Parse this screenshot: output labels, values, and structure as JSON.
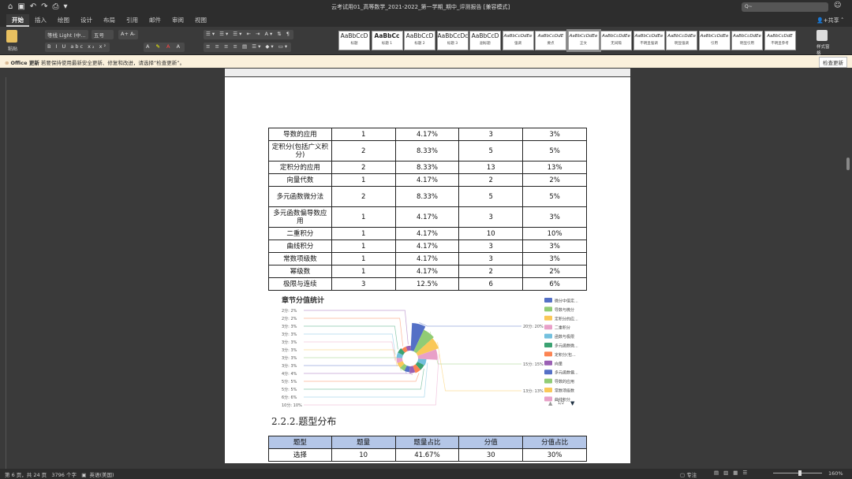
{
  "window": {
    "title": "云考试用01_高等数学_2021-2022_第一学期_期中_评测报告 [兼容模式]",
    "search_placeholder": "Q~"
  },
  "quick_access": [
    "home",
    "save",
    "undo",
    "redo",
    "print"
  ],
  "tabs": [
    "开始",
    "插入",
    "绘图",
    "设计",
    "布局",
    "引用",
    "邮件",
    "审阅",
    "视图"
  ],
  "share": "共享",
  "ribbon": {
    "paste": "粘贴",
    "font": "等线 Light (中...",
    "size": "五号",
    "styles": [
      {
        "sample": "AaBbCcD",
        "name": "标题"
      },
      {
        "sample": "AaBbCc",
        "name": "标题 1"
      },
      {
        "sample": "AaBbCcD",
        "name": "标题 2"
      },
      {
        "sample": "AaBbCcDc",
        "name": "标题 3"
      },
      {
        "sample": "AaBbCcD",
        "name": "副标题"
      },
      {
        "sample": "AaBbCcDdEe",
        "name": "强调"
      },
      {
        "sample": "AaBbCcDdE",
        "name": "要点"
      },
      {
        "sample": "AaBbCcDdEe",
        "name": "正文"
      },
      {
        "sample": "AaBbCcDdEe",
        "name": "无间隔"
      },
      {
        "sample": "AaBbCcDdEe",
        "name": "不明显强调"
      },
      {
        "sample": "AaBbCcDdEe",
        "name": "明显强调"
      },
      {
        "sample": "AaBbCcDdEe",
        "name": "引用"
      },
      {
        "sample": "AaBbCcDdEe",
        "name": "明显引用"
      },
      {
        "sample": "AaBbCcDdE",
        "name": "不明显参考"
      }
    ],
    "styles_pane": "样式窗格"
  },
  "update_bar": {
    "label": "Office 更新",
    "message": "若要保持使用最新安全更新、修复和改进，请选择“检查更新”。",
    "button": "检查更新"
  },
  "table1": [
    [
      "导数的应用",
      "1",
      "4.17%",
      "3",
      "3%"
    ],
    [
      "定积分(包括广义积分)",
      "2",
      "8.33%",
      "5",
      "5%"
    ],
    [
      "定积分的应用",
      "2",
      "8.33%",
      "13",
      "13%"
    ],
    [
      "向量代数",
      "1",
      "4.17%",
      "2",
      "2%"
    ],
    [
      "多元函数微分法",
      "2",
      "8.33%",
      "5",
      "5%"
    ],
    [
      "多元函数偏导数应用",
      "1",
      "4.17%",
      "3",
      "3%"
    ],
    [
      "二重积分",
      "1",
      "4.17%",
      "10",
      "10%"
    ],
    [
      "曲线积分",
      "1",
      "4.17%",
      "3",
      "3%"
    ],
    [
      "常数项级数",
      "1",
      "4.17%",
      "3",
      "3%"
    ],
    [
      "幂级数",
      "1",
      "4.17%",
      "2",
      "2%"
    ],
    [
      "极限与连续",
      "3",
      "12.5%",
      "6",
      "6%"
    ]
  ],
  "chart_data": {
    "type": "pie",
    "subtype": "rose",
    "title": "章节分值统计",
    "values": [
      20,
      15,
      13,
      10,
      6,
      5,
      5,
      4,
      3,
      3,
      3,
      3,
      3,
      3,
      2,
      2
    ],
    "labels": [
      "20分: 20%",
      "15分: 15%",
      "13分: 13%",
      "10分: 10%",
      "6分: 6%",
      "5分: 5%",
      "5分: 5%",
      "4分: 4%",
      "3分: 3%",
      "3分: 3%",
      "3分: 3%",
      "3分: 3%",
      "3分: 3%",
      "3分: 3%",
      "2分: 2%",
      "2分: 2%"
    ],
    "legend": [
      "微分中值定...",
      "导数与微分",
      "定积分的应...",
      "二重积分",
      "函数与极限",
      "多元函数微...",
      "定积分(包...",
      "向量",
      "多元函数偏...",
      "导数的应用",
      "常数项级数",
      "曲线积分"
    ],
    "legend_page": "1/2",
    "legend_placement": "right",
    "colors": [
      "#5470c6",
      "#91cc75",
      "#fac858",
      "#e8a0c8",
      "#73c0de",
      "#3ba272",
      "#fc8452",
      "#9a60b4"
    ]
  },
  "section_heading": "2.2.2.题型分布",
  "table2": [
    [
      "题型",
      "题量",
      "题量占比",
      "分值",
      "分值占比"
    ],
    [
      "选择",
      "10",
      "41.67%",
      "30",
      "30%"
    ]
  ],
  "status": {
    "page": "第 6 页，共 24 页",
    "words": "3796 个字",
    "lang": "英语(美国)",
    "focus": "专注",
    "zoom": "160%"
  }
}
